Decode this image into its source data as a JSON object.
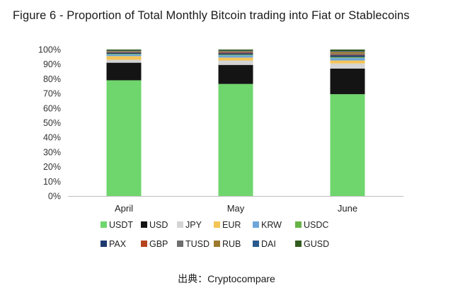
{
  "chart_data": {
    "type": "bar",
    "stacked": true,
    "title": "Figure 6 - Proportion of Total Monthly Bitcoin trading into Fiat or Stablecoins",
    "xlabel": "",
    "ylabel": "",
    "categories": [
      "April",
      "May",
      "June"
    ],
    "ylim": [
      0,
      100
    ],
    "yticks": [
      0,
      10,
      20,
      30,
      40,
      50,
      60,
      70,
      80,
      90,
      100
    ],
    "ytick_suffix": "%",
    "grid": false,
    "legend_position": "bottom",
    "series": [
      {
        "name": "USDT",
        "color": "#6fd66d",
        "values": [
          79,
          76.5,
          69.5
        ]
      },
      {
        "name": "USD",
        "color": "#141414",
        "values": [
          12,
          13,
          17.5
        ]
      },
      {
        "name": "JPY",
        "color": "#d4d4d4",
        "values": [
          2,
          3,
          3.5
        ]
      },
      {
        "name": "EUR",
        "color": "#f4c456",
        "values": [
          2.5,
          2,
          2
        ]
      },
      {
        "name": "KRW",
        "color": "#6ea6d9",
        "values": [
          1.2,
          1.5,
          1.8
        ]
      },
      {
        "name": "USDC",
        "color": "#67b347",
        "values": [
          0.4,
          0.5,
          0.6
        ]
      },
      {
        "name": "PAX",
        "color": "#1f3a6e",
        "values": [
          0.8,
          1,
          1.2
        ]
      },
      {
        "name": "GBP",
        "color": "#b5431f",
        "values": [
          0.3,
          0.5,
          0.4
        ]
      },
      {
        "name": "TUSD",
        "color": "#6e6e6e",
        "values": [
          0.4,
          0.6,
          0.7
        ]
      },
      {
        "name": "RUB",
        "color": "#9c7a2e",
        "values": [
          0.4,
          0.4,
          1.3
        ]
      },
      {
        "name": "DAI",
        "color": "#2a5a8c",
        "values": [
          0.3,
          0.3,
          0.5
        ]
      },
      {
        "name": "GUSD",
        "color": "#335c1f",
        "values": [
          0.7,
          0.7,
          1
        ]
      }
    ]
  },
  "source": "出典：Cryptocompare"
}
